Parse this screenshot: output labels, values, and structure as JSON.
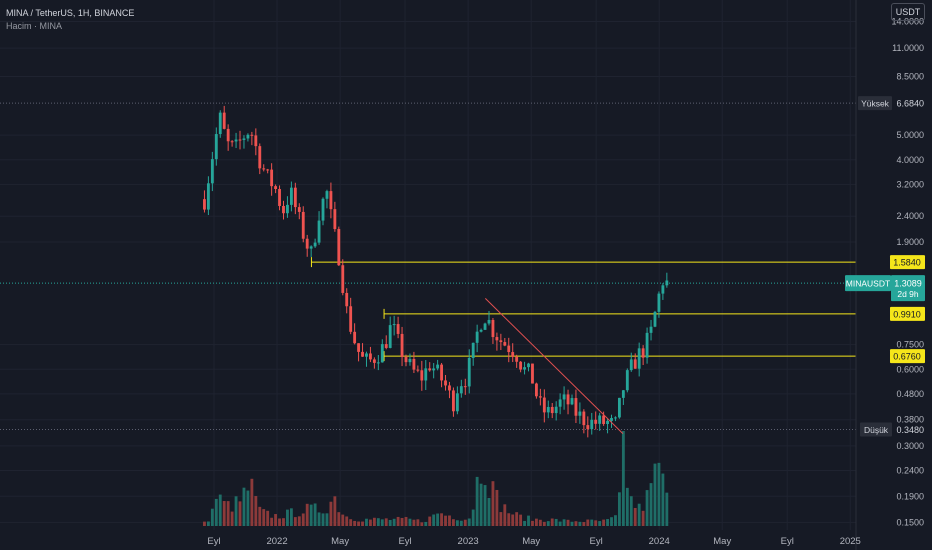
{
  "header": {
    "symbol_line": "MINA / TetherUS, 1H, BINANCE",
    "volume_line": "Hacim · MINA",
    "currency_button": "USDT"
  },
  "colors": {
    "background": "#161a25",
    "up": "#26a69a",
    "down": "#ef5350",
    "level_line": "#f5e61a",
    "trendline": "#e05050",
    "grid": "#1f2330",
    "axis_text": "#b2b5be"
  },
  "chart_data": {
    "type": "candlestick",
    "yscale": "log",
    "ylim": [
      0.14,
      17
    ],
    "y_ticks": [
      "14.0000",
      "11.0000",
      "8.5000",
      "5.0000",
      "4.0000",
      "3.2000",
      "2.4000",
      "1.9000",
      "0.7500",
      "0.6000",
      "0.4800",
      "0.3800",
      "0.3000",
      "0.2400",
      "0.1900",
      "0.1500"
    ],
    "y_tick_values": [
      14,
      11,
      8.5,
      5,
      4,
      3.2,
      2.4,
      1.9,
      0.75,
      0.6,
      0.48,
      0.38,
      0.3,
      0.24,
      0.19,
      0.15
    ],
    "x_ticks": [
      "Eyl",
      "2022",
      "May",
      "Eyl",
      "2023",
      "May",
      "Eyl",
      "2024",
      "May",
      "Eyl",
      "2025"
    ],
    "x_tick_values": [
      2021.67,
      2022.0,
      2022.33,
      2022.67,
      2023.0,
      2023.33,
      2023.67,
      2024.0,
      2024.33,
      2024.67,
      2025.0
    ],
    "xlim": [
      2020.55,
      2025.03
    ],
    "horizontal_levels": [
      1.584,
      0.991,
      0.676
    ],
    "level_labels": [
      "1.5840",
      "0.9910",
      "0.6760"
    ],
    "high_label": "Yüksek",
    "high_value": "6.6840",
    "high_price": 6.684,
    "low_label": "Düşük",
    "low_value": "0.3480",
    "low_price": 0.348,
    "last_price_label": "MINAUSDT",
    "last_price": "1.3089",
    "last_price_value": 1.3089,
    "countdown": "2d 9h",
    "trendline": {
      "start": [
        2023.09,
        1.14
      ],
      "end": [
        2023.81,
        0.335
      ]
    },
    "price_anchors": [
      [
        2021.62,
        2.8
      ],
      [
        2021.66,
        4.1
      ],
      [
        2021.7,
        5.9
      ],
      [
        2021.74,
        4.6
      ],
      [
        2021.78,
        4.4
      ],
      [
        2021.82,
        4.9
      ],
      [
        2021.86,
        5.3
      ],
      [
        2021.9,
        4.2
      ],
      [
        2021.94,
        3.5
      ],
      [
        2021.99,
        3.1
      ],
      [
        2022.03,
        2.5
      ],
      [
        2022.07,
        3.0
      ],
      [
        2022.11,
        2.4
      ],
      [
        2022.15,
        1.9
      ],
      [
        2022.18,
        1.7
      ],
      [
        2022.22,
        2.5
      ],
      [
        2022.26,
        3.0
      ],
      [
        2022.29,
        2.2
      ],
      [
        2022.33,
        1.6
      ],
      [
        2022.36,
        1.05
      ],
      [
        2022.4,
        0.8
      ],
      [
        2022.44,
        0.66
      ],
      [
        2022.48,
        0.64
      ],
      [
        2022.52,
        0.68
      ],
      [
        2022.56,
        0.74
      ],
      [
        2022.6,
        0.9
      ],
      [
        2022.64,
        0.74
      ],
      [
        2022.68,
        0.64
      ],
      [
        2022.72,
        0.58
      ],
      [
        2022.76,
        0.56
      ],
      [
        2022.8,
        0.63
      ],
      [
        2022.84,
        0.58
      ],
      [
        2022.88,
        0.52
      ],
      [
        2022.92,
        0.44
      ],
      [
        2022.95,
        0.53
      ],
      [
        2022.99,
        0.56
      ],
      [
        2023.03,
        0.72
      ],
      [
        2023.06,
        0.92
      ],
      [
        2023.09,
        0.98
      ],
      [
        2023.13,
        0.86
      ],
      [
        2023.17,
        0.78
      ],
      [
        2023.21,
        0.74
      ],
      [
        2023.25,
        0.7
      ],
      [
        2023.29,
        0.6
      ],
      [
        2023.33,
        0.57
      ],
      [
        2023.37,
        0.44
      ],
      [
        2023.41,
        0.4
      ],
      [
        2023.45,
        0.42
      ],
      [
        2023.49,
        0.45
      ],
      [
        2023.53,
        0.44
      ],
      [
        2023.57,
        0.4
      ],
      [
        2023.61,
        0.38
      ],
      [
        2023.65,
        0.37
      ],
      [
        2023.69,
        0.37
      ],
      [
        2023.73,
        0.37
      ],
      [
        2023.77,
        0.36
      ],
      [
        2023.81,
        0.5
      ],
      [
        2023.85,
        0.6
      ],
      [
        2023.89,
        0.68
      ],
      [
        2023.92,
        0.72
      ],
      [
        2023.96,
        0.85
      ],
      [
        2023.99,
        1.1
      ],
      [
        2024.02,
        1.35
      ],
      [
        2024.04,
        1.31
      ]
    ],
    "volume_anchors": [
      [
        2021.62,
        0.01
      ],
      [
        2021.68,
        0.09
      ],
      [
        2021.74,
        0.06
      ],
      [
        2021.8,
        0.07
      ],
      [
        2021.86,
        0.13
      ],
      [
        2021.92,
        0.04
      ],
      [
        2022.0,
        0.03
      ],
      [
        2022.08,
        0.04
      ],
      [
        2022.16,
        0.05
      ],
      [
        2022.24,
        0.05
      ],
      [
        2022.3,
        0.09
      ],
      [
        2022.36,
        0.03
      ],
      [
        2022.44,
        0.02
      ],
      [
        2022.52,
        0.02
      ],
      [
        2022.6,
        0.02
      ],
      [
        2022.68,
        0.02
      ],
      [
        2022.76,
        0.015
      ],
      [
        2022.84,
        0.04
      ],
      [
        2022.92,
        0.03
      ],
      [
        2023.0,
        0.02
      ],
      [
        2023.04,
        0.12
      ],
      [
        2023.08,
        0.22
      ],
      [
        2023.12,
        0.12
      ],
      [
        2023.18,
        0.06
      ],
      [
        2023.26,
        0.03
      ],
      [
        2023.34,
        0.02
      ],
      [
        2023.42,
        0.02
      ],
      [
        2023.52,
        0.015
      ],
      [
        2023.62,
        0.015
      ],
      [
        2023.72,
        0.015
      ],
      [
        2023.78,
        0.03
      ],
      [
        2023.81,
        0.3
      ],
      [
        2023.85,
        0.08
      ],
      [
        2023.9,
        0.05
      ],
      [
        2023.96,
        0.12
      ],
      [
        2024.0,
        0.2
      ],
      [
        2024.04,
        0.08
      ]
    ]
  }
}
